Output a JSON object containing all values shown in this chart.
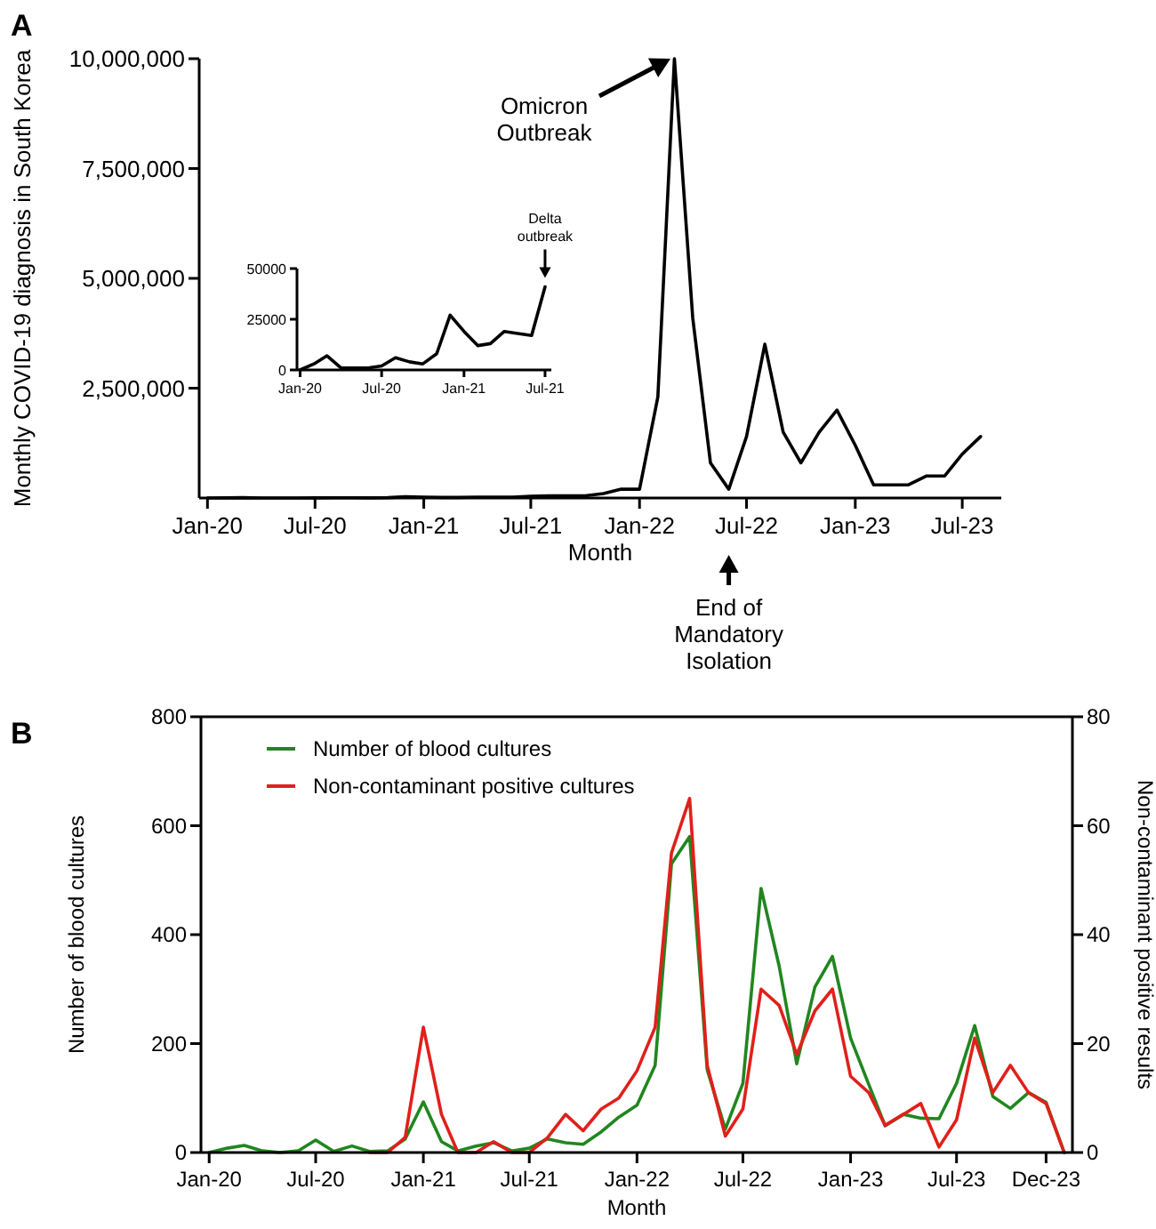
{
  "chart_data": [
    {
      "type": "line",
      "title": "A",
      "xlabel": "Month",
      "ylabel": "Monthly COVID-19 diagnosis in South Korea",
      "x": [
        "2020-01",
        "2020-02",
        "2020-03",
        "2020-04",
        "2020-05",
        "2020-06",
        "2020-07",
        "2020-08",
        "2020-09",
        "2020-10",
        "2020-11",
        "2020-12",
        "2021-01",
        "2021-02",
        "2021-03",
        "2021-04",
        "2021-05",
        "2021-06",
        "2021-07",
        "2021-08",
        "2021-09",
        "2021-10",
        "2021-11",
        "2021-12",
        "2022-01",
        "2022-02",
        "2022-03",
        "2022-04",
        "2022-05",
        "2022-06",
        "2022-07",
        "2022-08",
        "2022-09",
        "2022-10",
        "2022-11",
        "2022-12",
        "2023-01",
        "2023-02",
        "2023-03",
        "2023-04",
        "2023-05",
        "2023-06",
        "2023-07",
        "2023-08"
      ],
      "series": [
        {
          "color": "#000000",
          "values": [
            0,
            3000,
            7000,
            1000,
            1000,
            1000,
            2000,
            6000,
            4000,
            3000,
            8000,
            27000,
            19000,
            12000,
            13000,
            19000,
            18000,
            17000,
            41000,
            50000,
            50000,
            50000,
            100000,
            200000,
            200000,
            2300000,
            10000000,
            4100000,
            800000,
            200000,
            1400000,
            3500000,
            1500000,
            800000,
            1500000,
            2000000,
            1200000,
            300000,
            300000,
            300000,
            500000,
            500000,
            1000000,
            1400000
          ]
        }
      ],
      "xlim": [
        "2019-12-18",
        "2023-09-05"
      ],
      "xticks": [
        {
          "value": "2020-01",
          "label": "Jan-20"
        },
        {
          "value": "2020-07",
          "label": "Jul-20"
        },
        {
          "value": "2021-01",
          "label": "Jan-21"
        },
        {
          "value": "2021-07",
          "label": "Jul-21"
        },
        {
          "value": "2022-01",
          "label": "Jan-22"
        },
        {
          "value": "2022-07",
          "label": "Jul-22"
        },
        {
          "value": "2023-01",
          "label": "Jan-23"
        },
        {
          "value": "2023-07",
          "label": "Jul-23"
        }
      ],
      "ylim": [
        0,
        10000000
      ],
      "yticks": [
        {
          "value": 2500000,
          "label": "2,500,000"
        },
        {
          "value": 5000000,
          "label": "5,000,000"
        },
        {
          "value": 7500000,
          "label": "7,500,000"
        },
        {
          "value": 10000000,
          "label": "10,000,000"
        }
      ],
      "annotations": [
        "Omicron Outbreak",
        {
          "text": "End of Mandatory Isolation",
          "x": "2022-06"
        }
      ]
    },
    {
      "type": "line",
      "x": [
        "2020-01",
        "2020-02",
        "2020-03",
        "2020-04",
        "2020-05",
        "2020-06",
        "2020-07",
        "2020-08",
        "2020-09",
        "2020-10",
        "2020-11",
        "2020-12",
        "2021-01",
        "2021-02",
        "2021-03",
        "2021-04",
        "2021-05",
        "2021-06",
        "2021-07"
      ],
      "series": [
        {
          "color": "#000000",
          "values": [
            0,
            3000,
            7000,
            1000,
            1000,
            1000,
            2000,
            6000,
            4000,
            3000,
            8000,
            27000,
            19000,
            12000,
            13000,
            19000,
            18000,
            17000,
            41000
          ]
        }
      ],
      "xlim": [
        "2019-12-25",
        "2021-07-15"
      ],
      "xticks": [
        {
          "value": "2020-01",
          "label": "Jan-20"
        },
        {
          "value": "2020-07",
          "label": "Jul-20"
        },
        {
          "value": "2021-01",
          "label": "Jan-21"
        },
        {
          "value": "2021-07",
          "label": "Jul-21"
        }
      ],
      "ylim": [
        0,
        50000
      ],
      "yticks": [
        0,
        25000,
        50000
      ],
      "annotations": [
        {
          "text": "Delta outbreak",
          "x": "2021-07",
          "y": 41000
        }
      ]
    },
    {
      "type": "line",
      "title": "B",
      "xlabel": "Month",
      "ylabel": "Number of blood cultures",
      "y2label": "Non-contaminant positive results",
      "x": [
        "2020-01",
        "2020-02",
        "2020-03",
        "2020-04",
        "2020-05",
        "2020-06",
        "2020-07",
        "2020-08",
        "2020-09",
        "2020-10",
        "2020-11",
        "2020-12",
        "2021-01",
        "2021-02",
        "2021-03",
        "2021-04",
        "2021-05",
        "2021-06",
        "2021-07",
        "2021-08",
        "2021-09",
        "2021-10",
        "2021-11",
        "2021-12",
        "2022-01",
        "2022-02",
        "2022-03",
        "2022-04",
        "2022-05",
        "2022-06",
        "2022-07",
        "2022-08",
        "2022-09",
        "2022-10",
        "2022-11",
        "2022-12",
        "2023-01",
        "2023-02",
        "2023-03",
        "2023-04",
        "2023-05",
        "2023-06",
        "2023-07",
        "2023-08",
        "2023-09",
        "2023-10",
        "2023-11",
        "2023-12",
        "2024-01"
      ],
      "series": [
        {
          "name": "Number of blood cultures",
          "color": "#21861f",
          "values": [
            0,
            8,
            13,
            3,
            0,
            3,
            23,
            2,
            12,
            2,
            3,
            25,
            93,
            20,
            3,
            12,
            18,
            3,
            8,
            25,
            18,
            15,
            38,
            65,
            87,
            160,
            530,
            580,
            152,
            43,
            127,
            485,
            342,
            163,
            304,
            360,
            210,
            125,
            49,
            70,
            63,
            62,
            127,
            233,
            103,
            81,
            110,
            92,
            0
          ]
        },
        {
          "name": "Non-contaminant positive cultures",
          "color": "#e0201b",
          "axis": "y2",
          "values": [
            null,
            null,
            null,
            null,
            null,
            null,
            null,
            null,
            null,
            0,
            0,
            2.8,
            23,
            7,
            0,
            0,
            2,
            0,
            0,
            2.7,
            7,
            4,
            8,
            10,
            15,
            23,
            55,
            65,
            16,
            3,
            8,
            30,
            27,
            18,
            26,
            30,
            14,
            11,
            5,
            7,
            9,
            1,
            6,
            21,
            11,
            16,
            11,
            9,
            0
          ]
        }
      ],
      "xlim": [
        "2019-12-18",
        "2024-01-15"
      ],
      "xticks": [
        {
          "value": "2020-01",
          "label": "Jan-20"
        },
        {
          "value": "2020-07",
          "label": "Jul-20"
        },
        {
          "value": "2021-01",
          "label": "Jan-21"
        },
        {
          "value": "2021-07",
          "label": "Jul-21"
        },
        {
          "value": "2022-01",
          "label": "Jan-22"
        },
        {
          "value": "2022-07",
          "label": "Jul-22"
        },
        {
          "value": "2023-01",
          "label": "Jan-23"
        },
        {
          "value": "2023-07",
          "label": "Jul-23"
        },
        {
          "value": "2023-12",
          "label": "Dec-23"
        }
      ],
      "ylim": [
        0,
        800
      ],
      "yticks": [
        0,
        200,
        400,
        600,
        800
      ],
      "y2lim": [
        0,
        80
      ],
      "y2ticks": [
        0,
        20,
        40,
        60,
        80
      ],
      "legend": "top left"
    }
  ]
}
